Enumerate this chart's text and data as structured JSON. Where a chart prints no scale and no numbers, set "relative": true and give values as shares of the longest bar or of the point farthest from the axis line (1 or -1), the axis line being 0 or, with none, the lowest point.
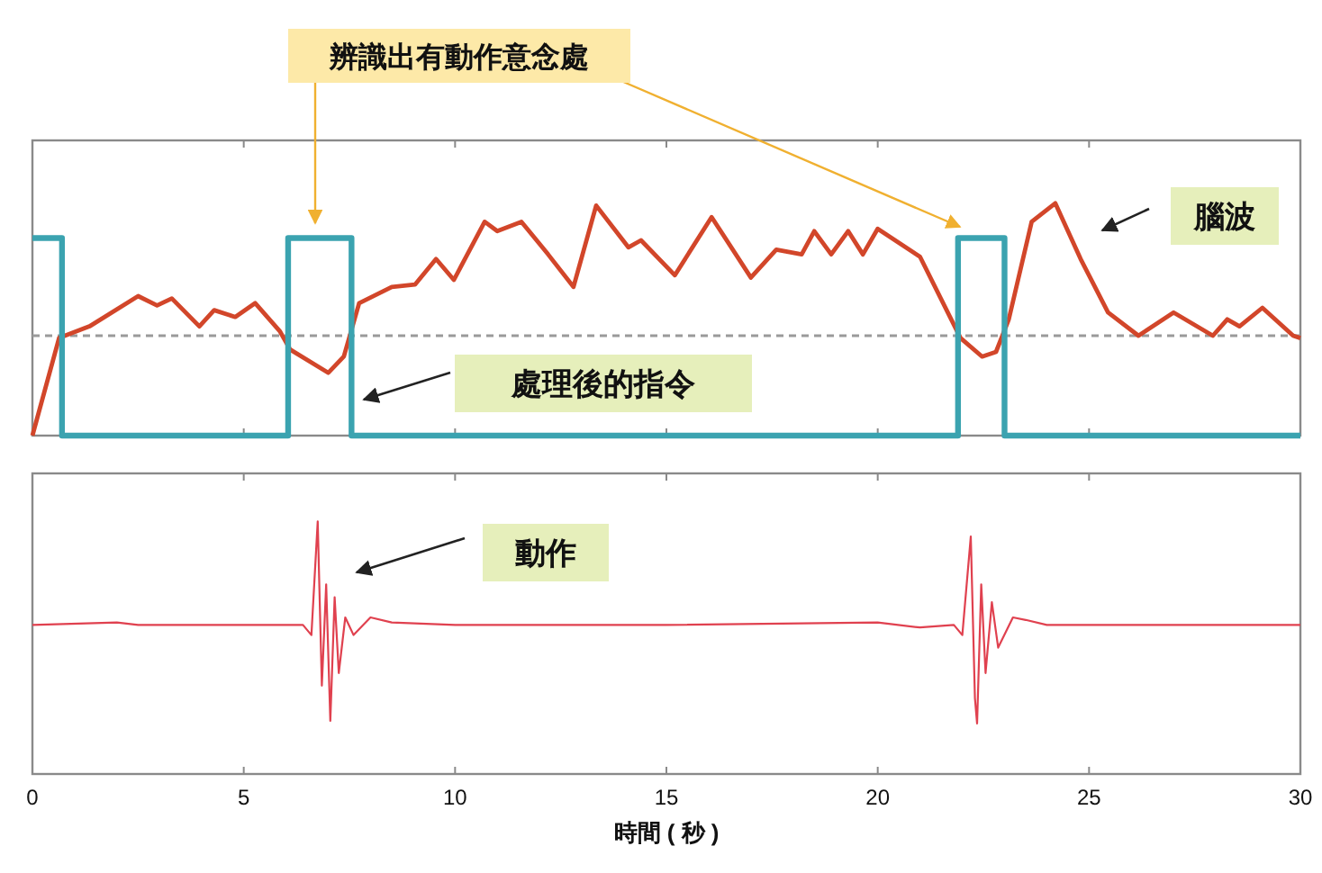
{
  "chart_data": [
    {
      "type": "line",
      "relative": true,
      "xlim": [
        0,
        30
      ],
      "xticks": [
        0,
        5,
        10,
        15,
        20,
        25,
        30
      ],
      "tick_labels": false,
      "annotations": [
        "辨識出有動作意念處"
      ],
      "ref_lines": [
        {
          "axis": "y",
          "value": 0.43,
          "color": "#9a9a9a",
          "line_style": "dashed"
        }
      ],
      "series": [
        {
          "name": "腦波",
          "color": "#d2462a",
          "x": [
            0,
            0.63,
            1.35,
            2.5,
            2.95,
            3.3,
            3.95,
            4.3,
            4.8,
            5.27,
            5.85,
            6.1,
            7.0,
            7.37,
            7.73,
            8.5,
            9.05,
            9.55,
            9.97,
            10.7,
            11.0,
            11.57,
            12.2,
            12.8,
            13.34,
            14.1,
            14.4,
            15.2,
            16.07,
            17.0,
            17.6,
            18.2,
            18.5,
            18.9,
            19.3,
            19.65,
            20.0,
            21.0,
            21.96,
            22.47,
            22.8,
            23.1,
            23.64,
            24.2,
            24.8,
            25.45,
            26.17,
            27.0,
            27.93,
            28.27,
            28.56,
            29.1,
            29.83,
            30
          ],
          "values": [
            0,
            0.42,
            0.47,
            0.6,
            0.56,
            0.59,
            0.47,
            0.54,
            0.51,
            0.57,
            0.45,
            0.37,
            0.27,
            0.34,
            0.57,
            0.64,
            0.65,
            0.76,
            0.67,
            0.92,
            0.88,
            0.92,
            0.78,
            0.64,
            0.99,
            0.81,
            0.84,
            0.69,
            0.94,
            0.68,
            0.8,
            0.78,
            0.88,
            0.78,
            0.88,
            0.78,
            0.89,
            0.77,
            0.42,
            0.34,
            0.36,
            0.5,
            0.92,
            1,
            0.76,
            0.53,
            0.43,
            0.53,
            0.43,
            0.5,
            0.47,
            0.55,
            0.43,
            0.42
          ]
        },
        {
          "name": "處理後的指令",
          "color": "#3ba3b0",
          "type": "step",
          "x": [
            0,
            0.7,
            6.05,
            7.55,
            21.9,
            23.0,
            30
          ],
          "values": [
            0.85,
            0,
            0.85,
            0,
            0.85,
            0,
            0
          ]
        }
      ]
    },
    {
      "type": "line",
      "relative": true,
      "xlim": [
        0,
        30
      ],
      "xticks": [
        0,
        5,
        10,
        15,
        20,
        25,
        30
      ],
      "tick_labels": "x",
      "xlabel": "時間 ( 秒 )",
      "series": [
        {
          "name": "動作",
          "color": "#e0414f",
          "x": [
            0,
            2,
            2.5,
            6.4,
            6.6,
            6.75,
            6.85,
            6.95,
            7.05,
            7.15,
            7.25,
            7.4,
            7.6,
            8.0,
            8.5,
            10,
            15,
            20,
            21,
            21.8,
            22.0,
            22.2,
            22.3,
            22.35,
            22.45,
            22.55,
            22.7,
            22.85,
            23.2,
            23.5,
            24,
            30
          ],
          "values": [
            0.59,
            0.6,
            0.59,
            0.59,
            0.55,
            1,
            0.35,
            0.75,
            0.21,
            0.7,
            0.4,
            0.62,
            0.55,
            0.62,
            0.6,
            0.59,
            0.59,
            0.6,
            0.58,
            0.59,
            0.55,
            0.94,
            0.3,
            0.2,
            0.75,
            0.4,
            0.68,
            0.5,
            0.62,
            0.61,
            0.59,
            0.59
          ]
        }
      ]
    }
  ]
}
